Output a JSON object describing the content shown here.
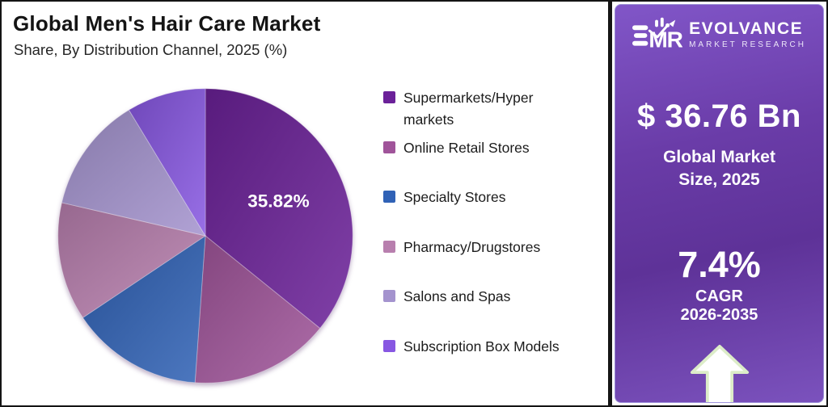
{
  "header": {
    "title": "Global Men's Hair Care Market",
    "subtitle": "Share, By Distribution Channel, 2025 (%)"
  },
  "chart_data": {
    "type": "pie",
    "title": "Global Men's Hair Care Market Share, By Distribution Channel, 2025 (%)",
    "unit": "%",
    "start_angle_deg": 0,
    "direction": "clockwise",
    "legend_position": "right",
    "slices": [
      {
        "label": "Supermarkets/Hyper markets",
        "value": 35.82,
        "data_label": "35.82%",
        "color": "#6b2199",
        "estimated": false
      },
      {
        "label": "Online Retail Stores",
        "value": 15.3,
        "color": "#a0549a",
        "estimated": true
      },
      {
        "label": "Specialty Stores",
        "value": 14.5,
        "color": "#3062b6",
        "estimated": true
      },
      {
        "label": "Pharmacy/Drugstores",
        "value": 13.0,
        "color": "#b87fae",
        "estimated": true
      },
      {
        "label": "Salons and Spas",
        "value": 12.7,
        "color": "#a493ce",
        "estimated": true
      },
      {
        "label": "Subscription Box Models",
        "value": 8.68,
        "color": "#8757e2",
        "estimated": true
      }
    ]
  },
  "sidebar": {
    "logo": {
      "monogram": "EMR",
      "name": "EVOLVANCE",
      "tagline": "MARKET RESEARCH"
    },
    "icons": {
      "logo": "emr-monogram-icon",
      "growth": "up-arrow-icon"
    },
    "market_size_value": "$ 36.76 Bn",
    "market_size_label": "Global Market\nSize, 2025",
    "cagr_value": "7.4%",
    "cagr_label": "CAGR",
    "cagr_period": "2026-2035",
    "colors": {
      "panel_light": "#8156c8",
      "panel_dark": "#5e3298",
      "text": "#ffffff",
      "arrow_fill": "#ffffff",
      "arrow_stroke": "#dcecc8"
    }
  },
  "colors": {
    "page_background": "#ffffff",
    "page_border": "#141414",
    "title_text": "#141414",
    "pie_label_text": "#ffffff"
  }
}
